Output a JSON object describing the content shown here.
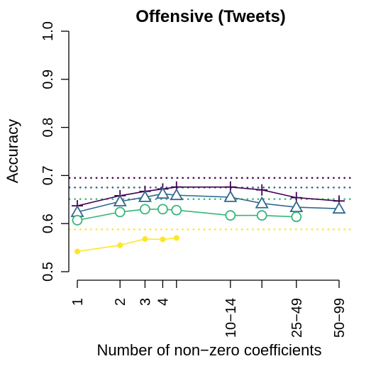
{
  "chart_data": {
    "type": "line",
    "title": "Offensive (Tweets)",
    "xlabel": "Number of non−zero coefficients",
    "ylabel": "Accuracy",
    "ylim": [
      0.5,
      1.0
    ],
    "y_ticks": [
      0.5,
      0.6,
      0.7,
      0.8,
      0.9,
      1.0
    ],
    "y_tick_labels": [
      "0.5",
      "0.6",
      "0.7",
      "0.8",
      "0.9",
      "1.0"
    ],
    "x_scale": "log",
    "x_ticks": [
      {
        "value": 1,
        "label": "1"
      },
      {
        "value": 2,
        "label": "2"
      },
      {
        "value": 3,
        "label": "3"
      },
      {
        "value": 4,
        "label": "4"
      },
      {
        "value": 5,
        "label": ""
      },
      {
        "value": 12,
        "label": "10−14"
      },
      {
        "value": 20,
        "label": ""
      },
      {
        "value": 35,
        "label": "25−49"
      },
      {
        "value": 70,
        "label": "50−99"
      }
    ],
    "legend": "none",
    "grid": false,
    "series": [
      {
        "marker": "plus",
        "color": "#440154",
        "points": [
          [
            1,
            0.637
          ],
          [
            2,
            0.658
          ],
          [
            3,
            0.667
          ],
          [
            4,
            0.672
          ],
          [
            5,
            0.676
          ],
          [
            12,
            0.676
          ],
          [
            20,
            0.67
          ],
          [
            35,
            0.654
          ],
          [
            70,
            0.647
          ]
        ]
      },
      {
        "marker": "triangle",
        "color": "#31688e",
        "points": [
          [
            1,
            0.624
          ],
          [
            2,
            0.646
          ],
          [
            3,
            0.655
          ],
          [
            4,
            0.662
          ],
          [
            5,
            0.659
          ],
          [
            12,
            0.655
          ],
          [
            20,
            0.642
          ],
          [
            35,
            0.634
          ],
          [
            70,
            0.631
          ]
        ]
      },
      {
        "marker": "circle",
        "color": "#35b779",
        "points": [
          [
            1,
            0.607
          ],
          [
            2,
            0.624
          ],
          [
            3,
            0.63
          ],
          [
            4,
            0.63
          ],
          [
            5,
            0.628
          ],
          [
            12,
            0.617
          ],
          [
            20,
            0.617
          ],
          [
            35,
            0.614
          ]
        ]
      },
      {
        "marker": "dot",
        "color": "#fde725",
        "points": [
          [
            1,
            0.542
          ],
          [
            2,
            0.555
          ],
          [
            3,
            0.568
          ],
          [
            4,
            0.567
          ],
          [
            5,
            0.57
          ]
        ]
      }
    ],
    "reference_lines": [
      {
        "y": 0.695,
        "color": "#440154"
      },
      {
        "y": 0.675,
        "color": "#31688e"
      },
      {
        "y": 0.651,
        "color": "#35b779"
      },
      {
        "y": 0.588,
        "color": "#fde725"
      }
    ]
  }
}
